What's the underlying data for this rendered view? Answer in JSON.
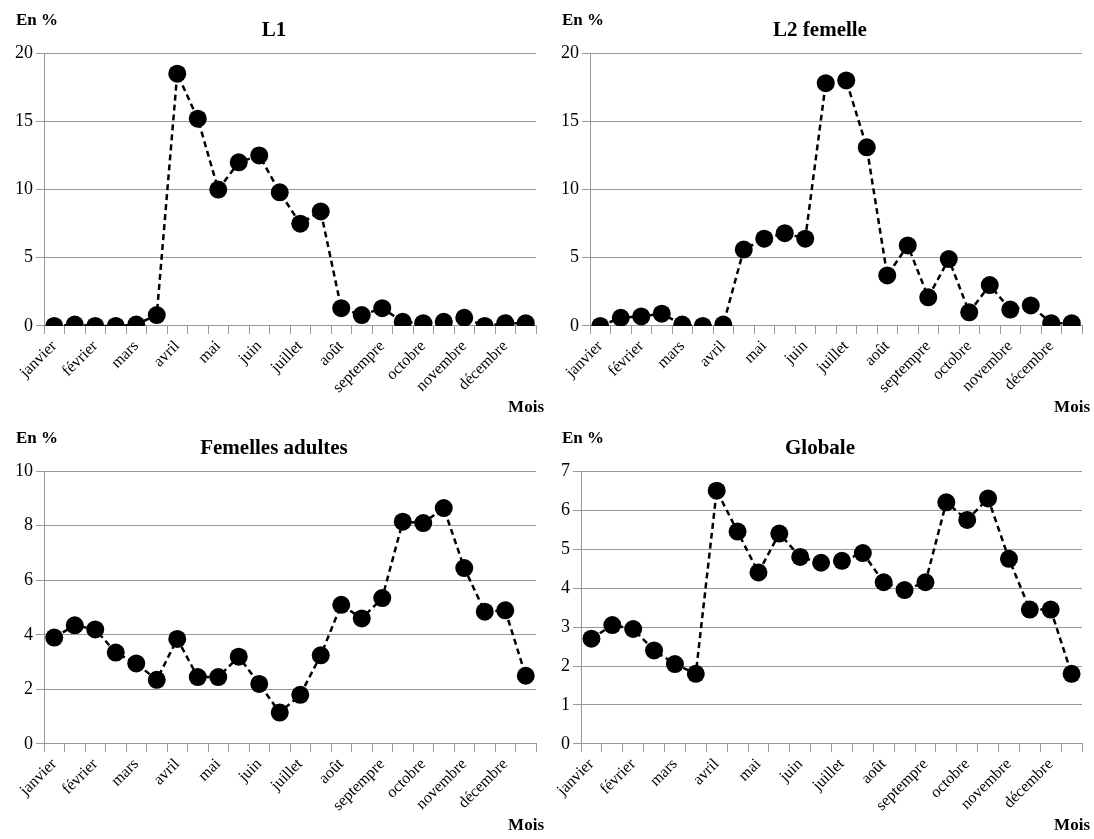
{
  "chart_data": [
    {
      "type": "line",
      "title": "L1",
      "ylabel": "En %",
      "xlabel": "Mois",
      "categories": [
        "janvier",
        null,
        "février",
        null,
        "mars",
        null,
        "avril",
        null,
        "mai",
        null,
        "juin",
        null,
        "juillet",
        null,
        "août",
        null,
        "septempre",
        null,
        "octobre",
        null,
        "novembre",
        null,
        "décembre",
        null
      ],
      "series": [
        {
          "color": "#000000",
          "values": [
            0,
            0.1,
            0,
            0,
            0.1,
            0.8,
            18.5,
            15.2,
            10,
            12,
            12.5,
            9.8,
            7.5,
            8.4,
            1.3,
            0.8,
            1.3,
            0.3,
            0.2,
            0.3,
            0.6,
            0,
            0.2,
            0.2
          ]
        }
      ],
      "ylim": [
        0,
        20
      ],
      "yticks": [
        0,
        5,
        10,
        15,
        20
      ],
      "grid": "y",
      "marker": "circle",
      "line_style": "dashed",
      "legend": false
    },
    {
      "type": "line",
      "title": "L2 femelle",
      "ylabel": "En %",
      "xlabel": "Mois",
      "categories": [
        "janvier",
        null,
        "février",
        null,
        "mars",
        null,
        "avril",
        null,
        "mai",
        null,
        "juin",
        null,
        "juillet",
        null,
        "août",
        null,
        "septempre",
        null,
        "octobre",
        null,
        "novembre",
        null,
        "décembre",
        null
      ],
      "series": [
        {
          "color": "#000000",
          "values": [
            0,
            0.6,
            0.7,
            0.9,
            0.1,
            0,
            0.1,
            5.6,
            6.4,
            6.8,
            6.4,
            17.8,
            18,
            13.1,
            3.7,
            5.9,
            2.1,
            4.9,
            1.0,
            3.0,
            1.2,
            1.5,
            0.2,
            0.2
          ]
        }
      ],
      "ylim": [
        0,
        20
      ],
      "yticks": [
        0,
        5,
        10,
        15,
        20
      ],
      "grid": "y",
      "marker": "circle",
      "line_style": "dashed",
      "legend": false
    },
    {
      "type": "line",
      "title": "Femelles adultes",
      "ylabel": "En %",
      "xlabel": "Mois",
      "categories": [
        "janvier",
        null,
        "février",
        null,
        "mars",
        null,
        "avril",
        null,
        "mai",
        null,
        "juin",
        null,
        "juillet",
        null,
        "août",
        null,
        "septempre",
        null,
        "octobre",
        null,
        "novembre",
        null,
        "décembre",
        null
      ],
      "series": [
        {
          "color": "#000000",
          "values": [
            3.9,
            4.35,
            4.2,
            3.35,
            2.95,
            2.35,
            3.85,
            2.45,
            2.45,
            3.2,
            2.2,
            1.15,
            1.8,
            3.25,
            5.1,
            4.6,
            5.35,
            8.15,
            8.1,
            8.65,
            6.45,
            4.85,
            4.9,
            2.5
          ]
        }
      ],
      "ylim": [
        0,
        10
      ],
      "yticks": [
        0,
        2,
        4,
        6,
        8,
        10
      ],
      "grid": "y",
      "marker": "circle",
      "line_style": "dashed",
      "legend": false
    },
    {
      "type": "line",
      "title": "Globale",
      "ylabel": "En %",
      "xlabel": "Mois",
      "categories": [
        "janvier",
        null,
        "février",
        null,
        "mars",
        null,
        "avril",
        null,
        "mai",
        null,
        "juin",
        null,
        "juillet",
        null,
        "août",
        null,
        "septempre",
        null,
        "octobre",
        null,
        "novembre",
        null,
        "décembre",
        null
      ],
      "series": [
        {
          "color": "#000000",
          "values": [
            2.7,
            3.05,
            2.95,
            2.4,
            2.05,
            1.8,
            6.5,
            5.45,
            4.4,
            5.4,
            4.8,
            4.65,
            4.7,
            4.9,
            4.15,
            3.95,
            4.15,
            6.2,
            5.75,
            6.3,
            4.75,
            3.45,
            3.45,
            1.8
          ]
        }
      ],
      "ylim": [
        0,
        7
      ],
      "yticks": [
        0,
        1,
        2,
        3,
        4,
        5,
        6,
        7
      ],
      "grid": "y",
      "marker": "circle",
      "line_style": "dashed",
      "legend": false
    }
  ]
}
